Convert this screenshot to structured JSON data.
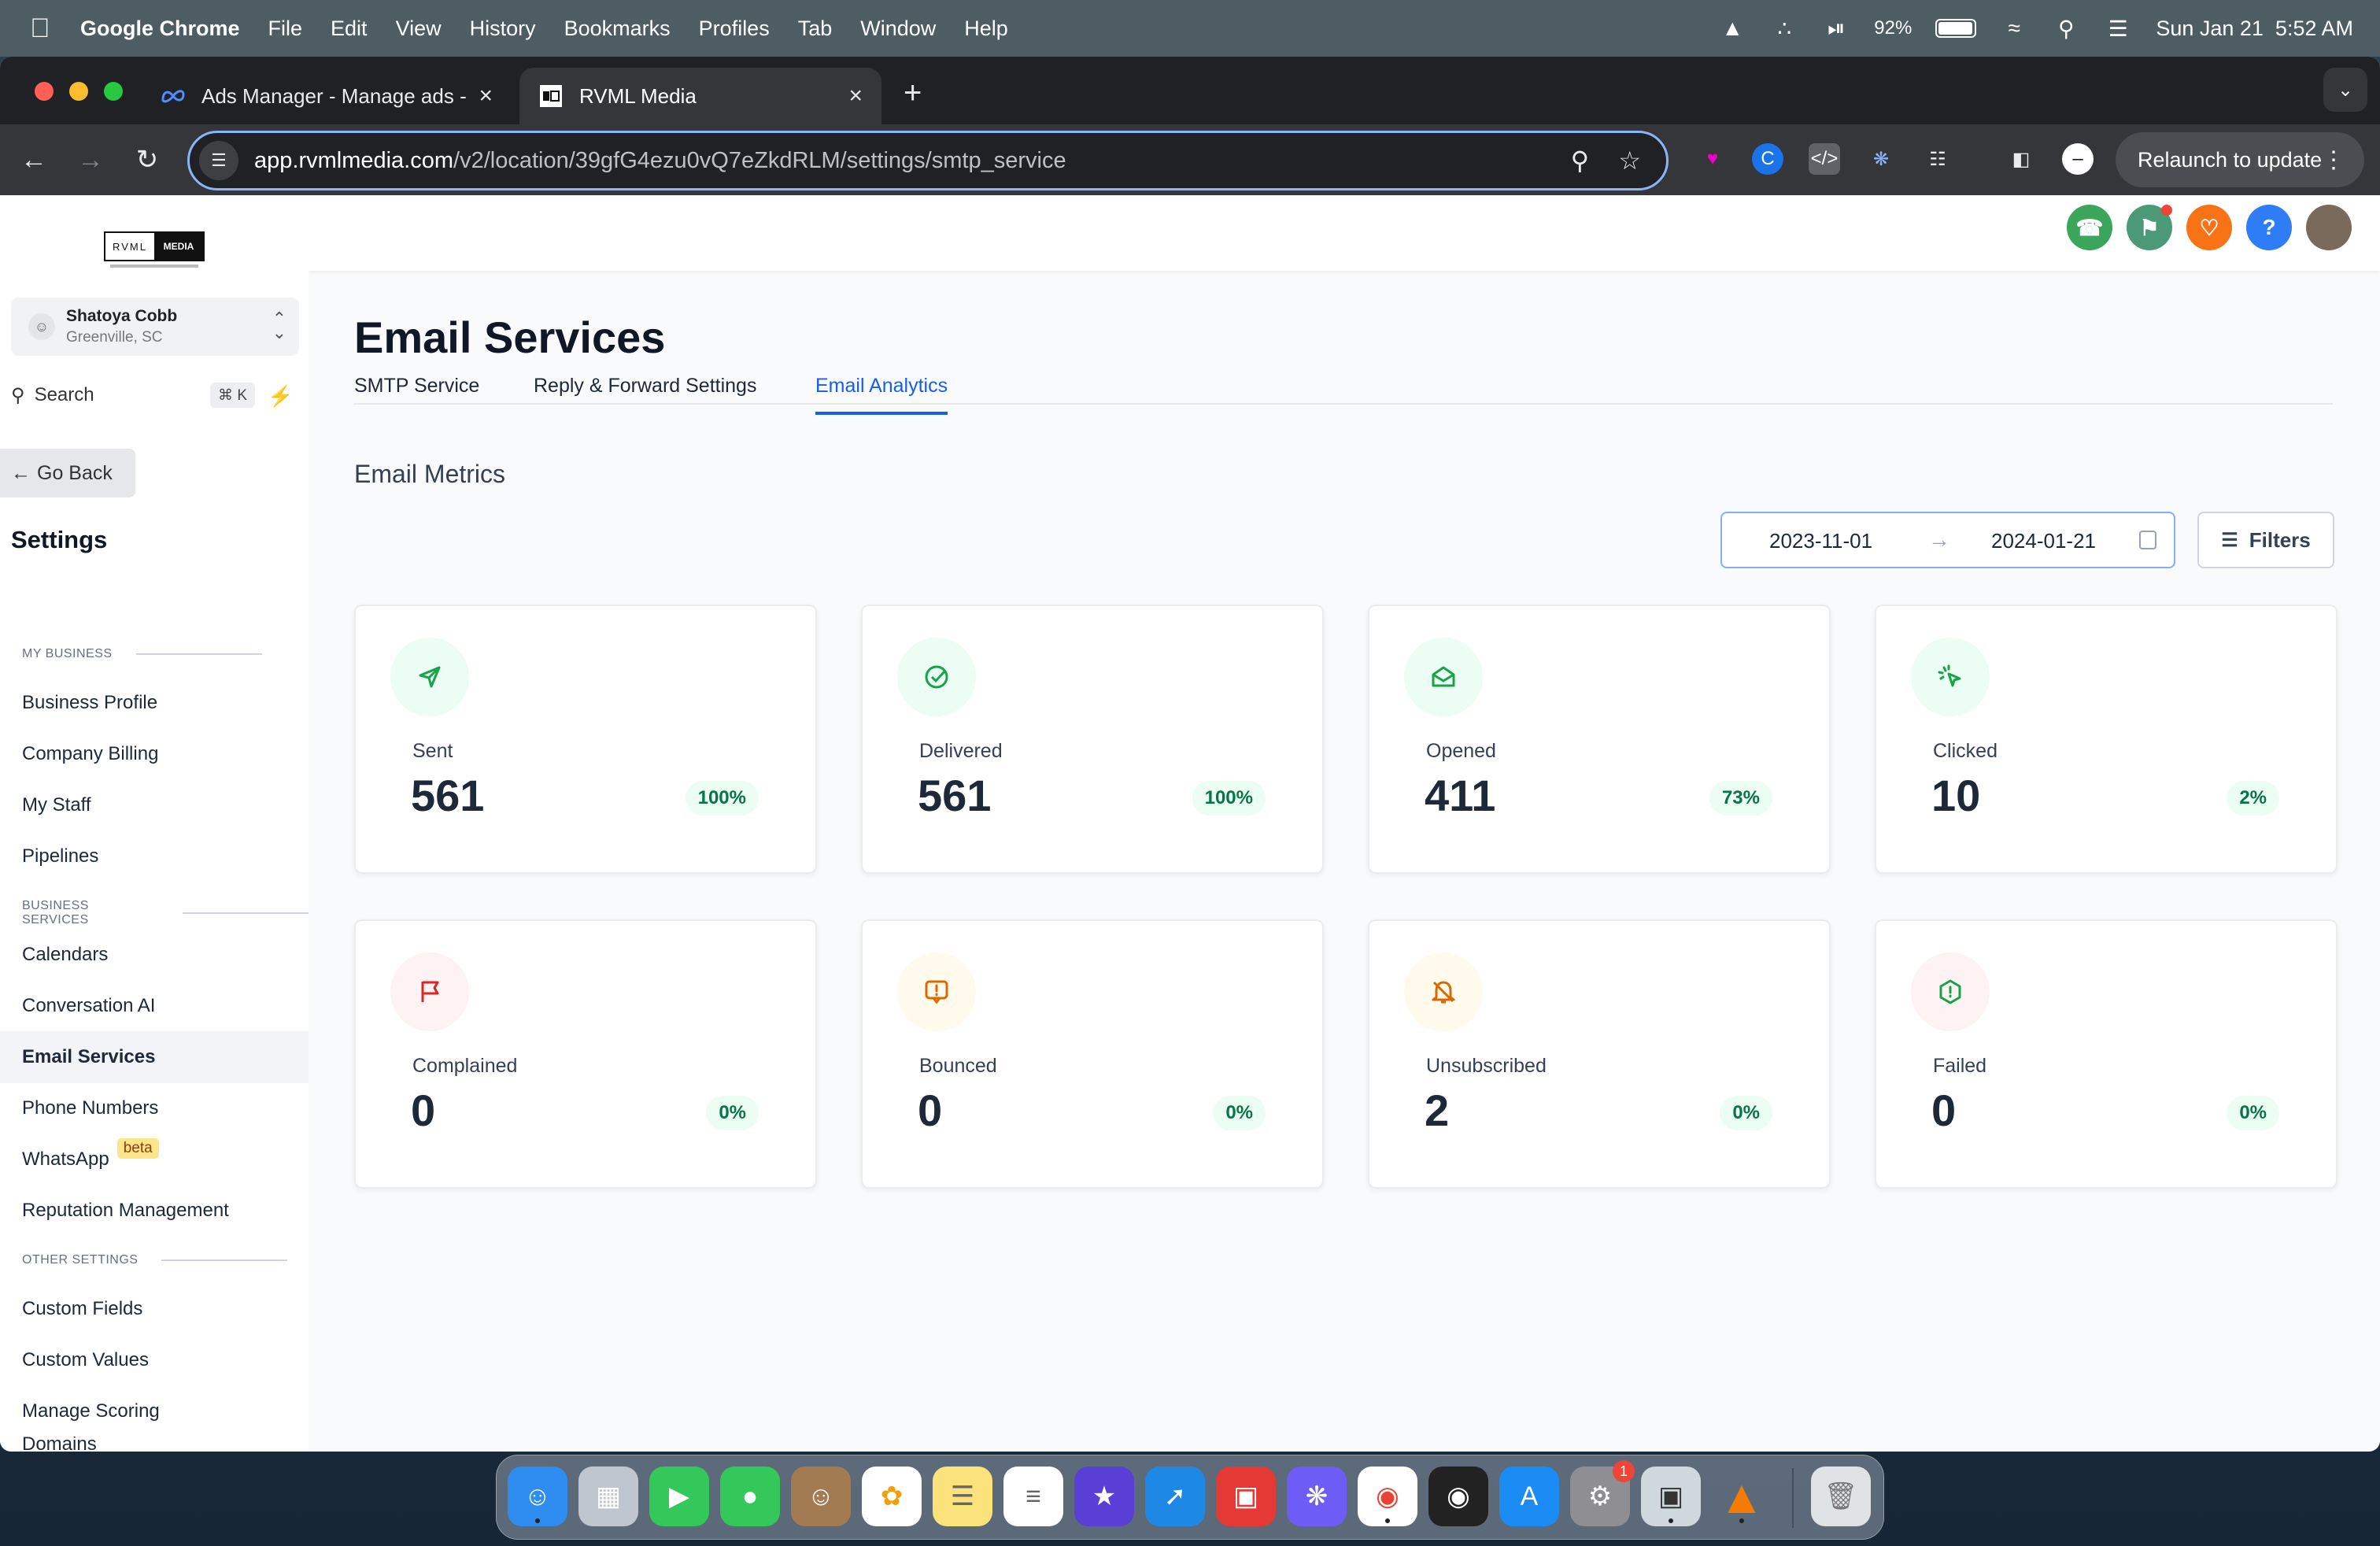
{
  "menubar": {
    "app": "Google Chrome",
    "menus": [
      "File",
      "Edit",
      "View",
      "History",
      "Bookmarks",
      "Profiles",
      "Tab",
      "Window",
      "Help"
    ],
    "battery": "92%",
    "datetime": "Sun Jan 21  5:52 AM"
  },
  "browser": {
    "tabs": [
      {
        "title": "Ads Manager - Manage ads -",
        "icon": "meta-icon"
      },
      {
        "title": "RVML Media",
        "icon": "rvml-favicon"
      }
    ],
    "url_host": "app.rvmlmedia.com",
    "url_path": "/v2/location/39gfG4ezu0vQ7eZkdRLM/settings/smtp_service",
    "relaunch_label": "Relaunch to update"
  },
  "sidebar": {
    "logo_left": "RVML",
    "logo_right": "MEDIA",
    "account_name": "Shatoya Cobb",
    "account_location": "Greenville, SC",
    "search_label": "Search",
    "search_shortcut": "⌘ K",
    "go_back": "Go Back",
    "title": "Settings",
    "sections": [
      {
        "label": "MY BUSINESS",
        "items": [
          "Business Profile",
          "Company Billing",
          "My Staff",
          "Pipelines"
        ]
      },
      {
        "label": "BUSINESS SERVICES",
        "items": [
          "Calendars",
          "Conversation AI",
          "Email Services",
          "Phone Numbers",
          "WhatsApp",
          "Reputation Management"
        ]
      },
      {
        "label": "OTHER SETTINGS",
        "items": [
          "Custom Fields",
          "Custom Values",
          "Manage Scoring",
          "Domains"
        ]
      }
    ],
    "active_item": "Email Services",
    "beta_badge": "beta"
  },
  "main": {
    "title": "Email Services",
    "tabs": [
      "SMTP Service",
      "Reply & Forward Settings",
      "Email Analytics"
    ],
    "active_tab": "Email Analytics",
    "metrics_title": "Email Metrics",
    "date_from": "2023-11-01",
    "date_to": "2024-01-21",
    "filters_label": "Filters",
    "metrics": [
      {
        "label": "Sent",
        "value": "561",
        "percent": "100%",
        "icon": "send-icon",
        "color": "#16a34a",
        "bg": "#ecfdf3"
      },
      {
        "label": "Delivered",
        "value": "561",
        "percent": "100%",
        "icon": "check-circle-icon",
        "color": "#16a34a",
        "bg": "#ecfdf3"
      },
      {
        "label": "Opened",
        "value": "411",
        "percent": "73%",
        "icon": "mail-open-icon",
        "color": "#16a34a",
        "bg": "#ecfdf3"
      },
      {
        "label": "Clicked",
        "value": "10",
        "percent": "2%",
        "icon": "cursor-click-icon",
        "color": "#16a34a",
        "bg": "#ecfdf3"
      },
      {
        "label": "Complained",
        "value": "0",
        "percent": "0%",
        "icon": "flag-icon",
        "color": "#dc2626",
        "bg": "#fef3f2"
      },
      {
        "label": "Bounced",
        "value": "0",
        "percent": "0%",
        "icon": "message-alert-icon",
        "color": "#dc6803",
        "bg": "#fffaeb"
      },
      {
        "label": "Unsubscribed",
        "value": "2",
        "percent": "0%",
        "icon": "bell-off-icon",
        "color": "#dc6803",
        "bg": "#fffaeb"
      },
      {
        "label": "Failed",
        "value": "0",
        "percent": "0%",
        "icon": "alert-hexagon-icon",
        "color": "#16a34a",
        "bg": "#fef3f2"
      }
    ]
  },
  "dock_badge": "1"
}
